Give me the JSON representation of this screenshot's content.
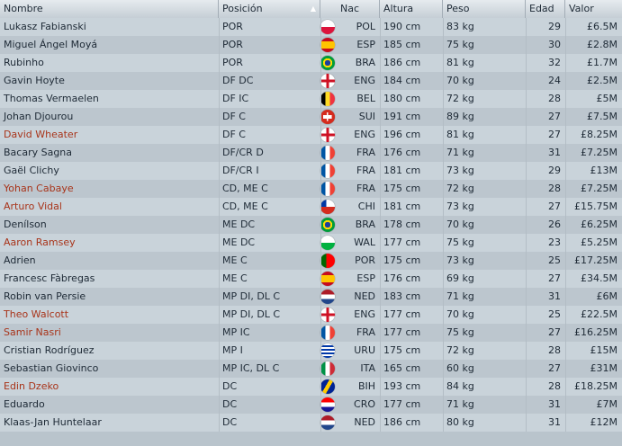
{
  "columns": [
    "Nombre",
    "Posición",
    "Nac",
    "Altura",
    "Peso",
    "Edad",
    "Valor"
  ],
  "rows": [
    {
      "name": "Lukasz Fabianski",
      "pos": "POR",
      "nac": "POL",
      "alt": "190 cm",
      "peso": "83 kg",
      "edad": "29",
      "valor": "£6.5M",
      "red": false,
      "flag": "pol"
    },
    {
      "name": "Miguel Ángel Moyá",
      "pos": "POR",
      "nac": "ESP",
      "alt": "185 cm",
      "peso": "75 kg",
      "edad": "30",
      "valor": "£2.8M",
      "red": false,
      "flag": "esp"
    },
    {
      "name": "Rubinho",
      "pos": "POR",
      "nac": "BRA",
      "alt": "186 cm",
      "peso": "81 kg",
      "edad": "32",
      "valor": "£1.7M",
      "red": false,
      "flag": "bra"
    },
    {
      "name": "Gavin Hoyte",
      "pos": "DF DC",
      "nac": "ENG",
      "alt": "184 cm",
      "peso": "70 kg",
      "edad": "24",
      "valor": "£2.5M",
      "red": false,
      "flag": "eng"
    },
    {
      "name": "Thomas Vermaelen",
      "pos": "DF IC",
      "nac": "BEL",
      "alt": "180 cm",
      "peso": "72 kg",
      "edad": "28",
      "valor": "£5M",
      "red": false,
      "flag": "bel"
    },
    {
      "name": "Johan Djourou",
      "pos": "DF C",
      "nac": "SUI",
      "alt": "191 cm",
      "peso": "89 kg",
      "edad": "27",
      "valor": "£7.5M",
      "red": false,
      "flag": "sui"
    },
    {
      "name": "David Wheater",
      "pos": "DF C",
      "nac": "ENG",
      "alt": "196 cm",
      "peso": "81 kg",
      "edad": "27",
      "valor": "£8.25M",
      "red": true,
      "flag": "eng"
    },
    {
      "name": "Bacary Sagna",
      "pos": "DF/CR D",
      "nac": "FRA",
      "alt": "176 cm",
      "peso": "71 kg",
      "edad": "31",
      "valor": "£7.25M",
      "red": false,
      "flag": "fra"
    },
    {
      "name": "Gaël Clichy",
      "pos": "DF/CR I",
      "nac": "FRA",
      "alt": "181 cm",
      "peso": "73 kg",
      "edad": "29",
      "valor": "£13M",
      "red": false,
      "flag": "fra"
    },
    {
      "name": "Yohan Cabaye",
      "pos": "CD, ME C",
      "nac": "FRA",
      "alt": "175 cm",
      "peso": "72 kg",
      "edad": "28",
      "valor": "£7.25M",
      "red": true,
      "flag": "fra"
    },
    {
      "name": "Arturo Vidal",
      "pos": "CD, ME C",
      "nac": "CHI",
      "alt": "181 cm",
      "peso": "73 kg",
      "edad": "27",
      "valor": "£15.75M",
      "red": true,
      "flag": "chi"
    },
    {
      "name": "Denílson",
      "pos": "ME DC",
      "nac": "BRA",
      "alt": "178 cm",
      "peso": "70 kg",
      "edad": "26",
      "valor": "£6.25M",
      "red": false,
      "flag": "bra"
    },
    {
      "name": "Aaron Ramsey",
      "pos": "ME DC",
      "nac": "WAL",
      "alt": "177 cm",
      "peso": "75 kg",
      "edad": "23",
      "valor": "£5.25M",
      "red": true,
      "flag": "wal"
    },
    {
      "name": "Adrien",
      "pos": "ME C",
      "nac": "POR",
      "alt": "175 cm",
      "peso": "73 kg",
      "edad": "25",
      "valor": "£17.25M",
      "red": false,
      "flag": "por"
    },
    {
      "name": "Francesc Fàbregas",
      "pos": "ME C",
      "nac": "ESP",
      "alt": "176 cm",
      "peso": "69 kg",
      "edad": "27",
      "valor": "£34.5M",
      "red": false,
      "flag": "esp"
    },
    {
      "name": "Robin van Persie",
      "pos": "MP DI, DL C",
      "nac": "NED",
      "alt": "183 cm",
      "peso": "71 kg",
      "edad": "31",
      "valor": "£6M",
      "red": false,
      "flag": "ned"
    },
    {
      "name": "Theo Walcott",
      "pos": "MP DI, DL C",
      "nac": "ENG",
      "alt": "177 cm",
      "peso": "70 kg",
      "edad": "25",
      "valor": "£22.5M",
      "red": true,
      "flag": "eng"
    },
    {
      "name": "Samir Nasri",
      "pos": "MP IC",
      "nac": "FRA",
      "alt": "177 cm",
      "peso": "75 kg",
      "edad": "27",
      "valor": "£16.25M",
      "red": true,
      "flag": "fra"
    },
    {
      "name": "Cristian Rodríguez",
      "pos": "MP I",
      "nac": "URU",
      "alt": "175 cm",
      "peso": "72 kg",
      "edad": "28",
      "valor": "£15M",
      "red": false,
      "flag": "uru"
    },
    {
      "name": "Sebastian Giovinco",
      "pos": "MP IC, DL C",
      "nac": "ITA",
      "alt": "165 cm",
      "peso": "60 kg",
      "edad": "27",
      "valor": "£31M",
      "red": false,
      "flag": "ita"
    },
    {
      "name": "Edin Dzeko",
      "pos": "DC",
      "nac": "BIH",
      "alt": "193 cm",
      "peso": "84 kg",
      "edad": "28",
      "valor": "£18.25M",
      "red": true,
      "flag": "bih"
    },
    {
      "name": "Eduardo",
      "pos": "DC",
      "nac": "CRO",
      "alt": "177 cm",
      "peso": "71 kg",
      "edad": "31",
      "valor": "£7M",
      "red": false,
      "flag": "cro"
    },
    {
      "name": "Klaas-Jan Huntelaar",
      "pos": "DC",
      "nac": "NED",
      "alt": "186 cm",
      "peso": "80 kg",
      "edad": "31",
      "valor": "£12M",
      "red": false,
      "flag": "ned"
    }
  ],
  "colors": {
    "name_highlight": "#a8341a",
    "text": "#1e2a36"
  }
}
